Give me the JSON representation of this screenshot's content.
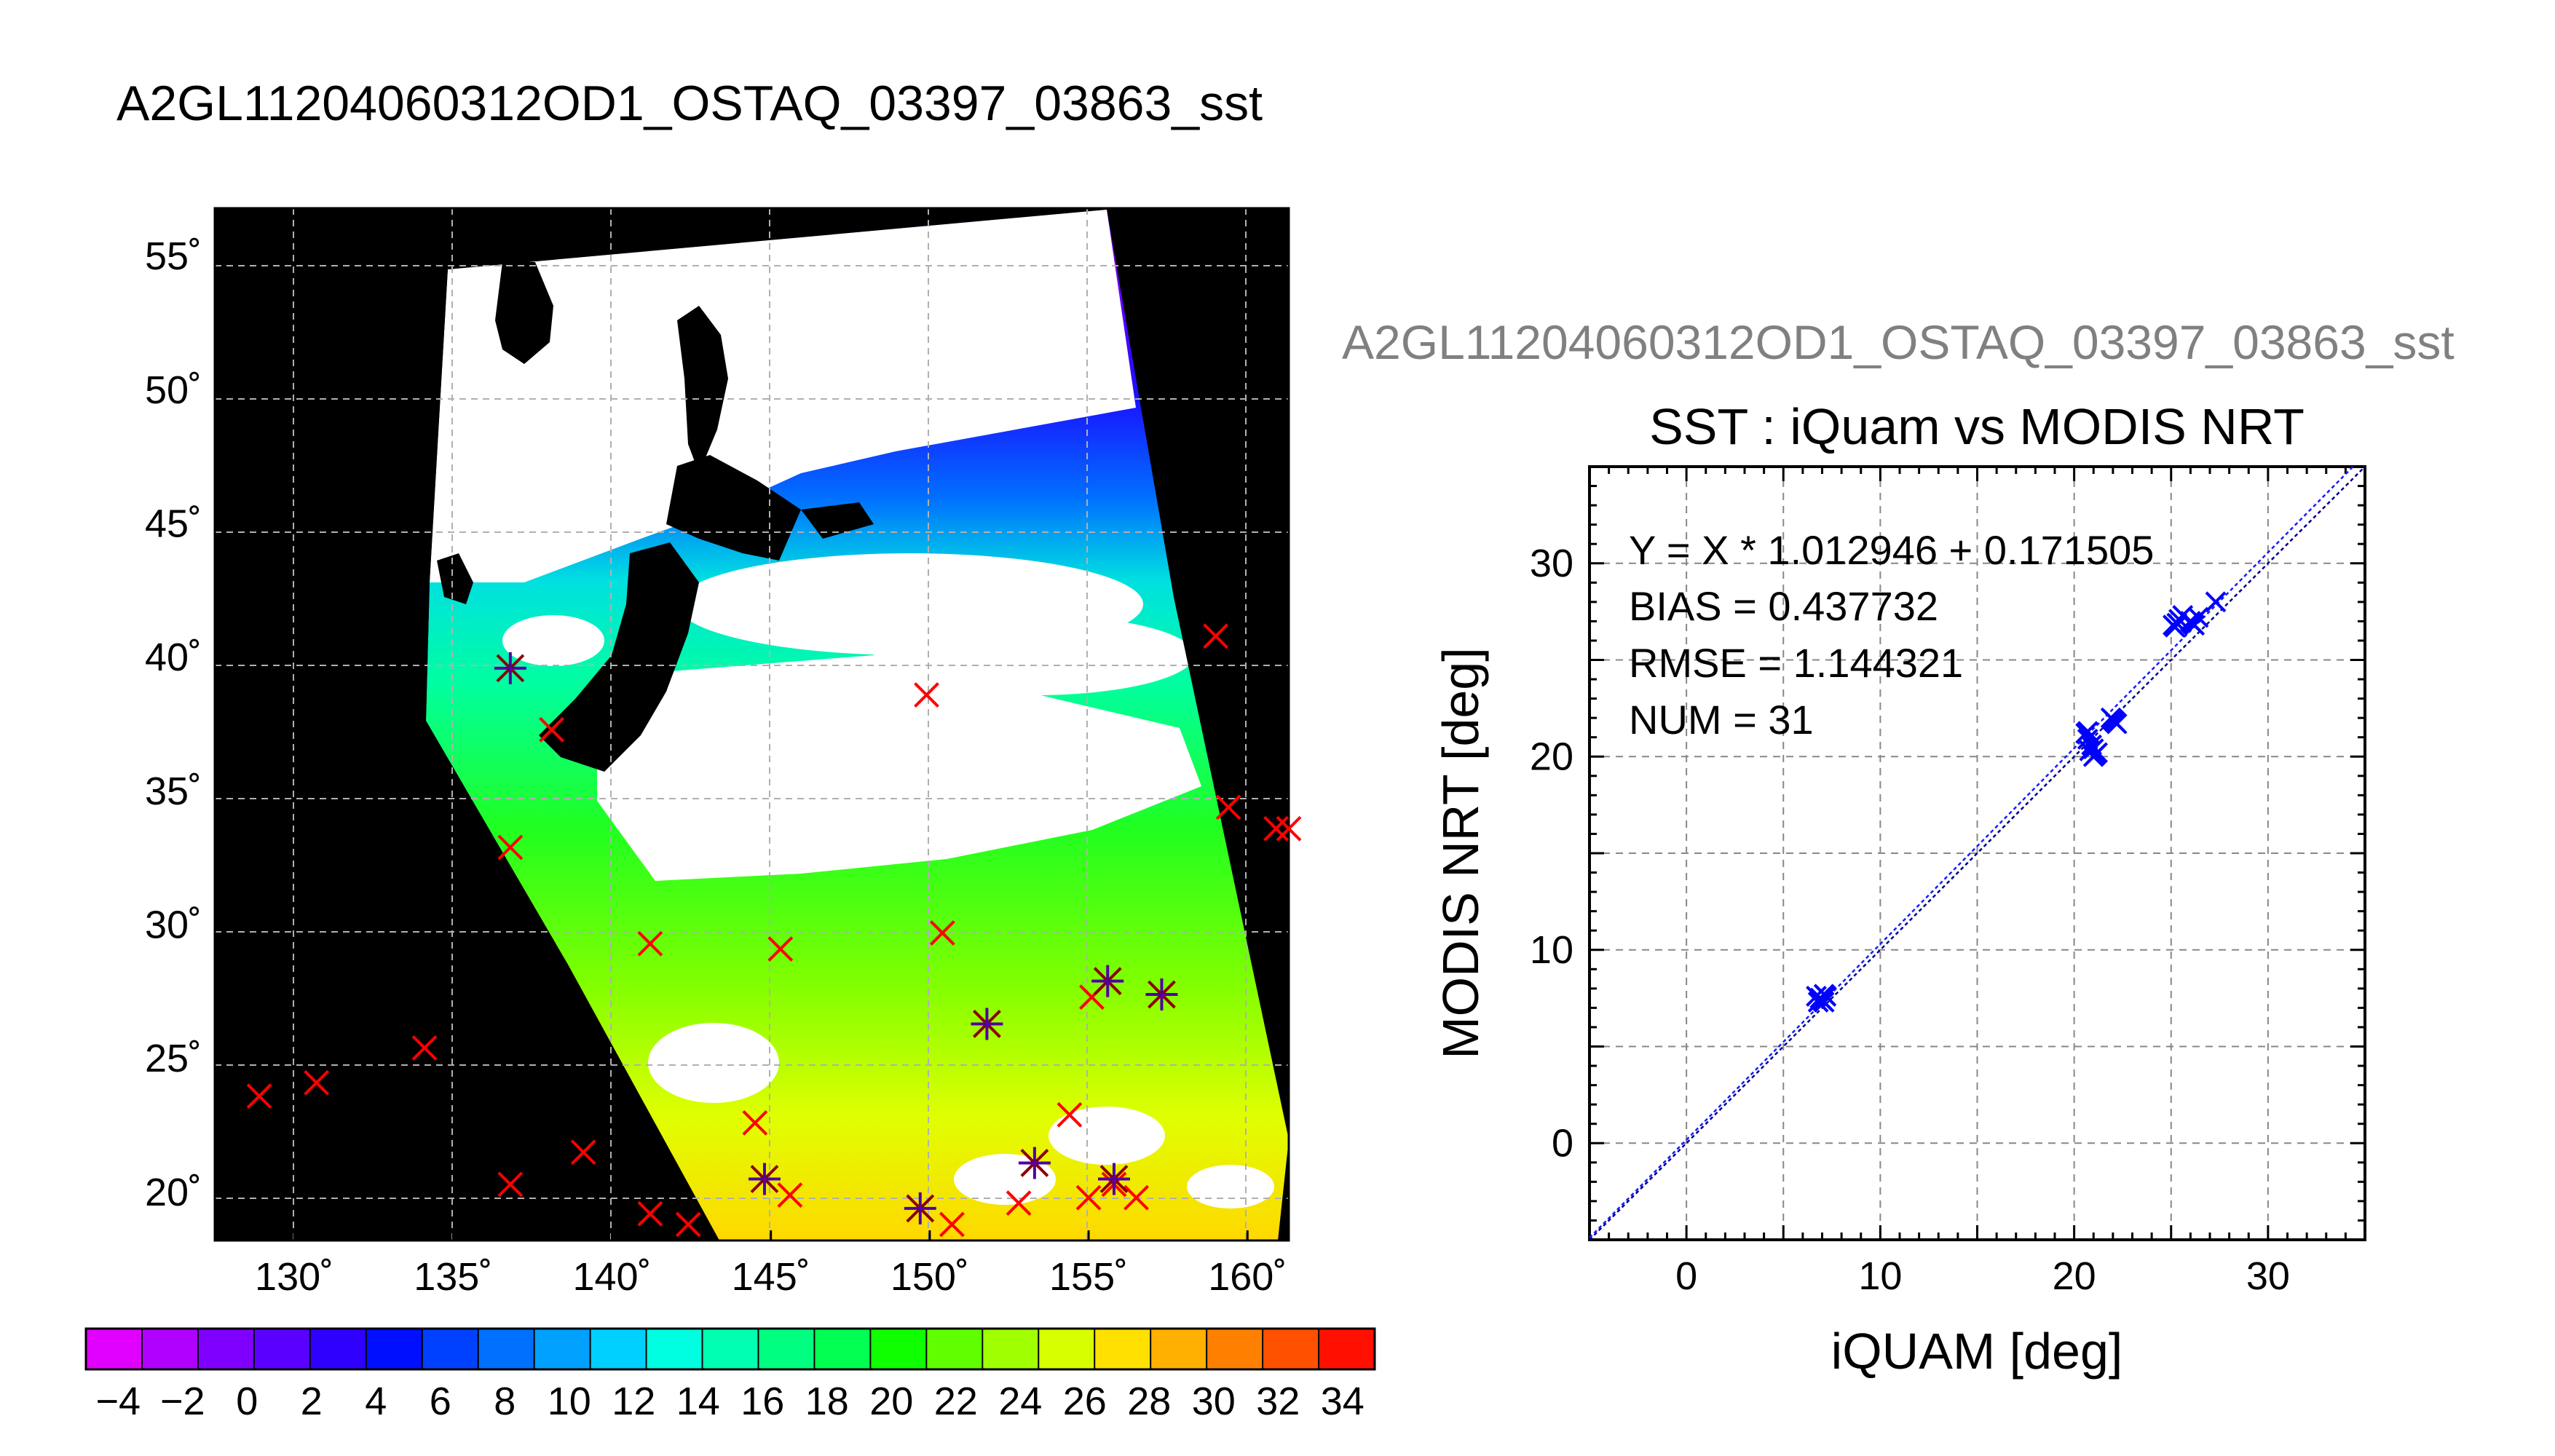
{
  "main_title": "A2GL11204060312OD1_OSTAQ_03397_03863_sst",
  "secondary_title": "A2GL11204060312OD1_OSTAQ_03397_03863_sst",
  "colors": {
    "background": "#ffffff",
    "map_background": "#000000",
    "cloud": "#ffffff",
    "land": "#000000",
    "match_marker": "#ff0000",
    "scatter_marker": "#0000ff",
    "fit_line": "#00008b"
  },
  "chart_data": [
    {
      "type": "heatmap",
      "title": "",
      "xticks": [
        "130˚",
        "135˚",
        "140˚",
        "145˚",
        "150˚",
        "155˚",
        "160˚"
      ],
      "yticks": [
        "20˚",
        "25˚",
        "30˚",
        "35˚",
        "40˚",
        "45˚",
        "50˚",
        "55˚"
      ],
      "xlim": [
        127.5,
        161.3
      ],
      "ylim": [
        18.2,
        56.8
      ],
      "grid": true,
      "colorbar": {
        "ticks": [
          "−4",
          "−2",
          "0",
          "2",
          "4",
          "6",
          "8",
          "10",
          "12",
          "14",
          "16",
          "18",
          "20",
          "22",
          "24",
          "26",
          "28",
          "30",
          "32",
          "34"
        ],
        "range": [
          -5,
          35
        ],
        "colors": [
          "#e000ff",
          "#b000ff",
          "#8000ff",
          "#5a00ff",
          "#3000ff",
          "#0010ff",
          "#0040ff",
          "#0070ff",
          "#00a0ff",
          "#00d0ff",
          "#00ffe0",
          "#00ffb0",
          "#00ff80",
          "#00ff50",
          "#10ff00",
          "#60ff00",
          "#a0ff00",
          "#d8ff00",
          "#ffe000",
          "#ffb000",
          "#ff8000",
          "#ff5000",
          "#ff1000"
        ]
      },
      "points_red_x": [
        [
          128.9,
          23.6
        ],
        [
          130.7,
          24.1
        ],
        [
          134.1,
          25.4
        ],
        [
          136.8,
          20.3
        ],
        [
          139.1,
          21.5
        ],
        [
          141.2,
          19.2
        ],
        [
          142.4,
          18.8
        ],
        [
          136.8,
          32.9
        ],
        [
          138.1,
          37.3
        ],
        [
          141.2,
          29.3
        ],
        [
          144.5,
          22.6
        ],
        [
          145.6,
          19.9
        ],
        [
          149.9,
          38.6
        ],
        [
          150.4,
          29.7
        ],
        [
          150.7,
          18.8
        ],
        [
          152.8,
          19.6
        ],
        [
          154.4,
          22.9
        ],
        [
          155.1,
          27.3
        ],
        [
          155.8,
          20.3
        ],
        [
          156.5,
          19.8
        ],
        [
          159.0,
          40.8
        ],
        [
          159.4,
          34.4
        ],
        [
          160.9,
          33.6
        ],
        [
          161.3,
          33.6
        ],
        [
          145.3,
          29.1
        ],
        [
          155.0,
          19.8
        ]
      ],
      "points_star": [
        [
          136.8,
          39.6
        ],
        [
          144.8,
          20.5
        ],
        [
          149.7,
          19.4
        ],
        [
          151.8,
          26.3
        ],
        [
          153.3,
          21.1
        ],
        [
          155.6,
          27.9
        ],
        [
          157.3,
          27.4
        ],
        [
          155.8,
          20.5
        ]
      ]
    },
    {
      "type": "scatter",
      "title": "SST : iQuam vs MODIS NRT",
      "xlabel": "iQUAM [deg]",
      "ylabel": "MODIS NRT [deg]",
      "xlim": [
        -5,
        35
      ],
      "ylim": [
        -5,
        35
      ],
      "xticks": [
        0,
        10,
        20,
        30
      ],
      "yticks": [
        0,
        10,
        20,
        30
      ],
      "grid": true,
      "annotations": [
        "Y = X * 1.012946 + 0.171505",
        "BIAS = 0.437732",
        "RMSE = 1.144321",
        "NUM = 31"
      ],
      "fit": {
        "slope": 1.012946,
        "intercept": 0.171505
      },
      "x": [
        6.7,
        6.9,
        7.0,
        7.1,
        6.8,
        7.2,
        20.6,
        20.7,
        20.9,
        21.0,
        20.8,
        21.1,
        22.0,
        22.2,
        21.9,
        25.1,
        25.4,
        25.2,
        26.0,
        26.2,
        26.4,
        27.3,
        25.6,
        20.7,
        21.0,
        22.1,
        6.9,
        7.1,
        25.3,
        26.1,
        21.2
      ],
      "y": [
        7.6,
        7.5,
        7.4,
        7.7,
        7.3,
        7.6,
        21.2,
        20.9,
        20.6,
        20.0,
        20.3,
        20.1,
        21.9,
        21.7,
        22.0,
        26.8,
        27.1,
        26.7,
        27.0,
        26.8,
        27.2,
        28.0,
        27.3,
        21.3,
        20.4,
        21.8,
        7.5,
        7.3,
        26.9,
        26.9,
        20.2
      ]
    }
  ]
}
